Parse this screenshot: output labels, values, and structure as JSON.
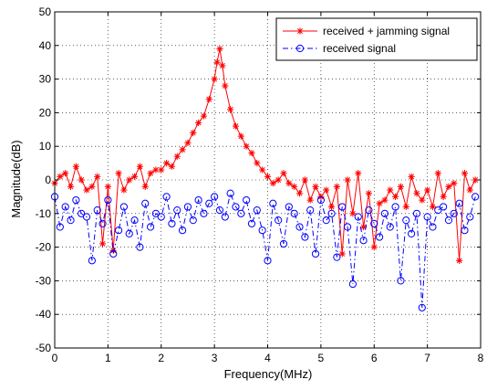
{
  "chart_data": {
    "type": "line",
    "title": "",
    "xlabel": "Frequency(MHz)",
    "ylabel": "Magnitude(dB)",
    "xlim": [
      0,
      8
    ],
    "ylim": [
      -50,
      50
    ],
    "xticks": [
      0,
      1,
      2,
      3,
      4,
      5,
      6,
      7,
      8
    ],
    "xtick_labels": [
      "0",
      "1",
      "2",
      "3",
      "4",
      "5",
      "6",
      "7",
      "8"
    ],
    "yticks": [
      -50,
      -40,
      -30,
      -20,
      -10,
      0,
      10,
      20,
      30,
      40,
      50
    ],
    "ytick_labels": [
      "-50",
      "-40",
      "-30",
      "-20",
      "-10",
      "0",
      "10",
      "20",
      "30",
      "40",
      "50"
    ],
    "grid": true,
    "legend_position": "top-right",
    "series": [
      {
        "name": "received + jamming signal",
        "color": "#ff0000",
        "line_style": "solid",
        "marker": "asterisk",
        "x": [
          0.0,
          0.1,
          0.2,
          0.3,
          0.4,
          0.5,
          0.6,
          0.7,
          0.8,
          0.9,
          1.0,
          1.1,
          1.2,
          1.3,
          1.4,
          1.5,
          1.6,
          1.7,
          1.8,
          1.9,
          2.0,
          2.1,
          2.2,
          2.3,
          2.4,
          2.5,
          2.6,
          2.7,
          2.8,
          2.9,
          3.0,
          3.05,
          3.1,
          3.15,
          3.2,
          3.3,
          3.4,
          3.5,
          3.6,
          3.7,
          3.8,
          3.9,
          4.0,
          4.1,
          4.2,
          4.3,
          4.4,
          4.5,
          4.6,
          4.7,
          4.8,
          4.9,
          5.0,
          5.1,
          5.2,
          5.3,
          5.4,
          5.5,
          5.6,
          5.7,
          5.8,
          5.9,
          6.0,
          6.1,
          6.2,
          6.3,
          6.4,
          6.5,
          6.6,
          6.7,
          6.8,
          6.9,
          7.0,
          7.1,
          7.2,
          7.3,
          7.4,
          7.5,
          7.6,
          7.7,
          7.8,
          7.9
        ],
        "y": [
          -1,
          1,
          2,
          -2,
          4,
          0,
          -3,
          -2,
          1,
          -19,
          -2,
          -21,
          2,
          -3,
          0,
          1,
          4,
          -2,
          2,
          3,
          3,
          5,
          4,
          7,
          9,
          11,
          14,
          17,
          19,
          24,
          30,
          35,
          39,
          34,
          28,
          21,
          16,
          13,
          10,
          8,
          5,
          3,
          1,
          -1,
          0,
          2,
          -1,
          -2,
          -4,
          0,
          -6,
          -2,
          -5,
          -3,
          -8,
          -2,
          -22,
          0,
          -10,
          2,
          -14,
          -4,
          -20,
          -7,
          -6,
          -3,
          -5,
          -2,
          -8,
          1,
          -4,
          -6,
          -3,
          -8,
          2,
          -5,
          -2,
          -1,
          -24,
          2,
          -3,
          0
        ]
      },
      {
        "name": "received signal",
        "color": "#0000ff",
        "line_style": "dash-dot",
        "marker": "circle",
        "x": [
          0.0,
          0.1,
          0.2,
          0.3,
          0.4,
          0.5,
          0.6,
          0.7,
          0.8,
          0.9,
          1.0,
          1.1,
          1.2,
          1.3,
          1.4,
          1.5,
          1.6,
          1.7,
          1.8,
          1.9,
          2.0,
          2.1,
          2.2,
          2.3,
          2.4,
          2.5,
          2.6,
          2.7,
          2.8,
          2.9,
          3.0,
          3.1,
          3.2,
          3.3,
          3.4,
          3.5,
          3.6,
          3.7,
          3.8,
          3.9,
          4.0,
          4.1,
          4.2,
          4.3,
          4.4,
          4.5,
          4.6,
          4.7,
          4.8,
          4.9,
          5.0,
          5.1,
          5.2,
          5.3,
          5.4,
          5.5,
          5.6,
          5.7,
          5.8,
          5.9,
          6.0,
          6.1,
          6.2,
          6.3,
          6.4,
          6.5,
          6.6,
          6.7,
          6.8,
          6.9,
          7.0,
          7.1,
          7.2,
          7.3,
          7.4,
          7.5,
          7.6,
          7.7,
          7.8,
          7.9
        ],
        "y": [
          -5,
          -14,
          -8,
          -12,
          -6,
          -10,
          -11,
          -24,
          -9,
          -13,
          -6,
          -22,
          -15,
          -8,
          -16,
          -12,
          -20,
          -7,
          -14,
          -10,
          -11,
          -5,
          -13,
          -9,
          -15,
          -8,
          -12,
          -6,
          -10,
          -7,
          -5,
          -9,
          -11,
          -4,
          -8,
          -10,
          -6,
          -13,
          -9,
          -15,
          -24,
          -7,
          -12,
          -19,
          -8,
          -10,
          -14,
          -17,
          -9,
          -22,
          -6,
          -12,
          -10,
          -23,
          -8,
          -14,
          -31,
          -11,
          -18,
          -9,
          -13,
          -17,
          -10,
          -14,
          -8,
          -30,
          -12,
          -16,
          -10,
          -38,
          -11,
          -14,
          -9,
          -8,
          -12,
          -10,
          -7,
          -15,
          -11,
          -5
        ]
      }
    ]
  }
}
